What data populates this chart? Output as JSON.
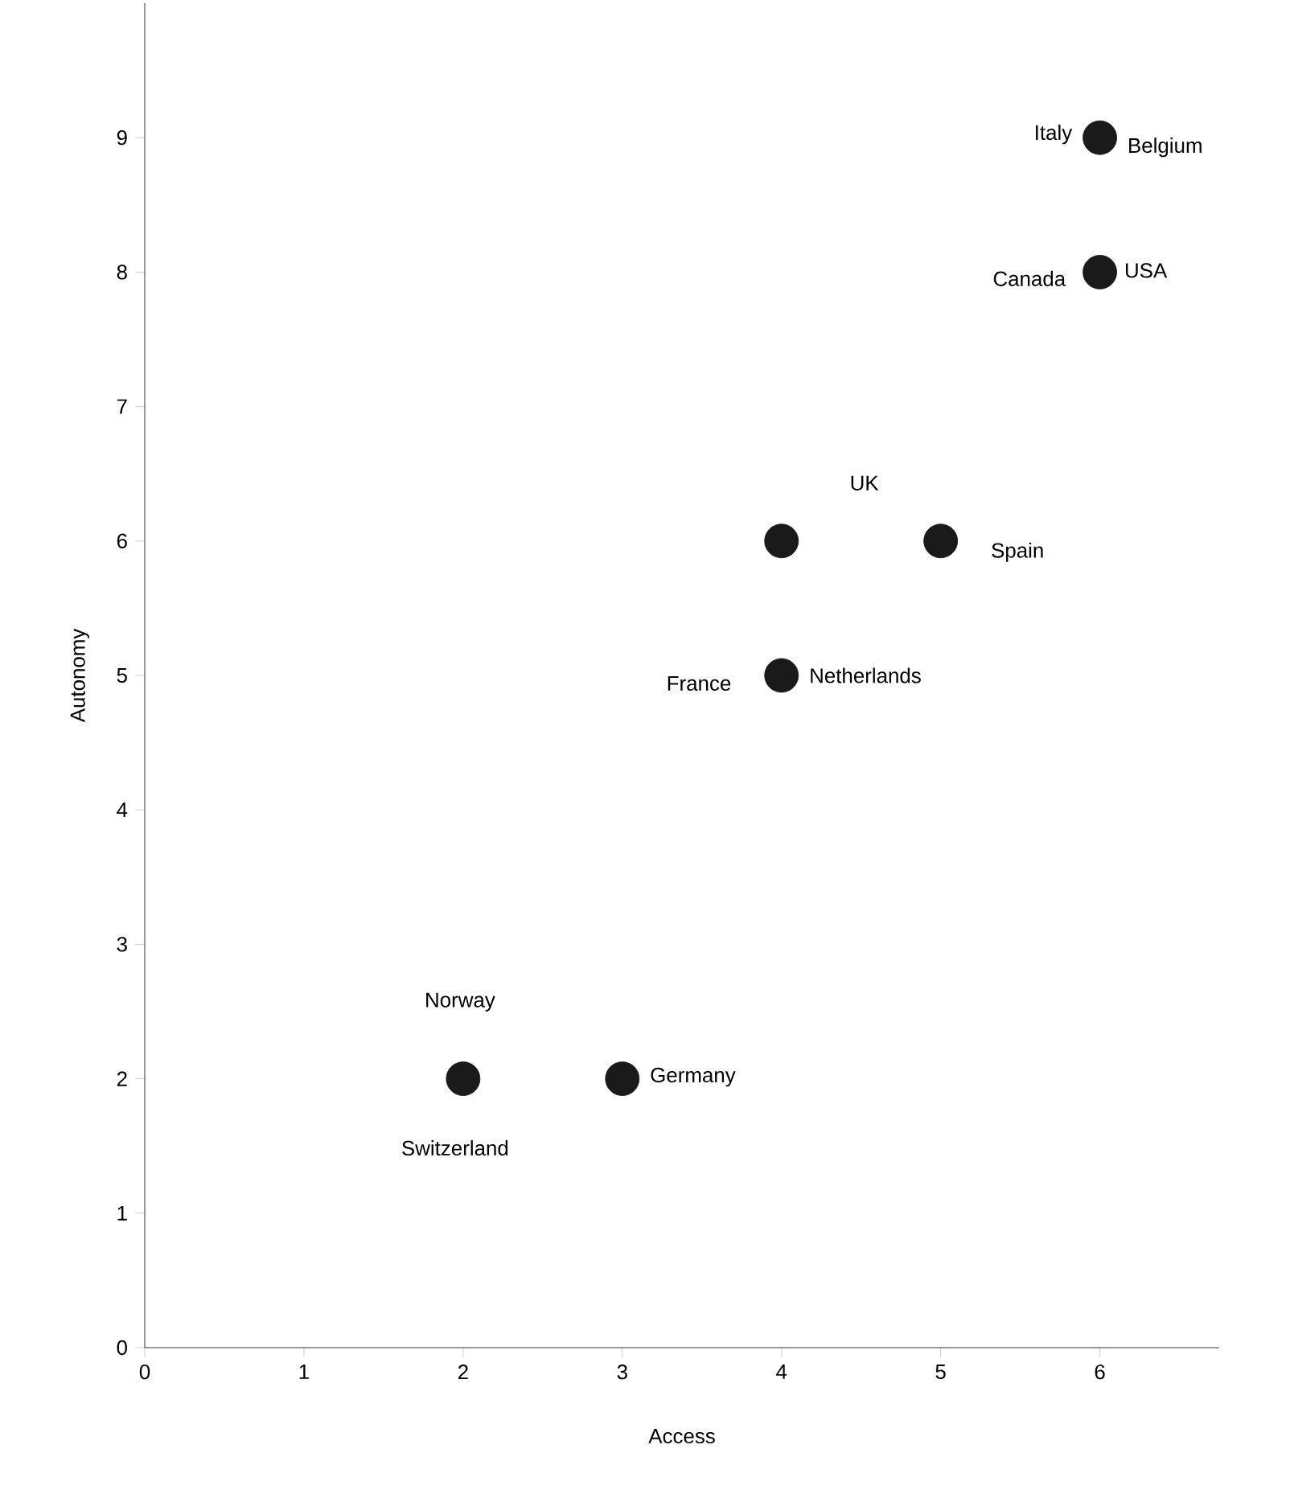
{
  "chart_data": {
    "type": "scatter",
    "xlabel": "Access",
    "ylabel": "Autonomy",
    "x": [
      2,
      3,
      4,
      4,
      5,
      6,
      6
    ],
    "values": [
      2,
      2,
      5,
      6,
      6,
      8,
      9
    ],
    "color": "#1a1a1a",
    "marker": "circle",
    "xlim": [
      0,
      6.75
    ],
    "ylim": [
      0,
      10
    ],
    "xticks": [
      0,
      1,
      2,
      3,
      4,
      5,
      6
    ],
    "yticks": [
      0,
      1,
      2,
      3,
      4,
      5,
      6,
      7,
      8,
      9
    ],
    "annotations": [
      {
        "text": "Italy",
        "x": 6,
        "y": 9
      },
      {
        "text": "Belgium",
        "x": 6,
        "y": 9
      },
      {
        "text": "Canada",
        "x": 6,
        "y": 8
      },
      {
        "text": "USA",
        "x": 6,
        "y": 8
      },
      "UK",
      {
        "text": "Spain",
        "x": 5,
        "y": 6
      },
      {
        "text": "France",
        "x": 4,
        "y": 5
      },
      {
        "text": "Netherlands",
        "x": 4,
        "y": 5
      },
      "Norway",
      {
        "text": "Switzerland",
        "x": 2,
        "y": 2
      },
      {
        "text": "Germany",
        "x": 3,
        "y": 2
      }
    ]
  }
}
